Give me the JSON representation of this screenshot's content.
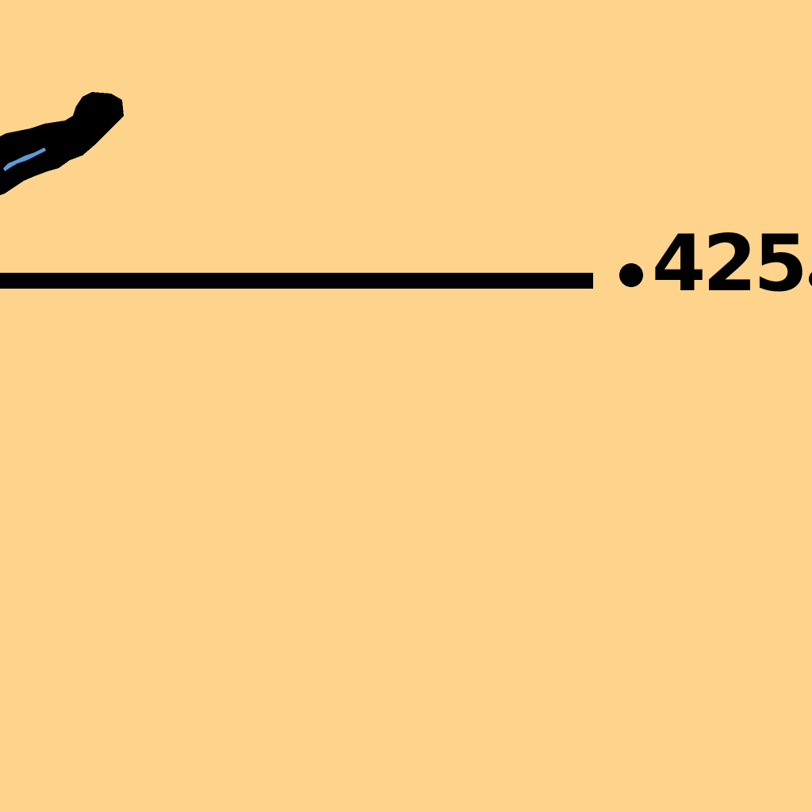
{
  "scene": {
    "background_color": "#FED48C",
    "ink_color": "#000000",
    "accent_color": "#5B9BD9",
    "stroke_icon": "brush-stroke-icon"
  },
  "measurement": {
    "value_text": "425"
  }
}
